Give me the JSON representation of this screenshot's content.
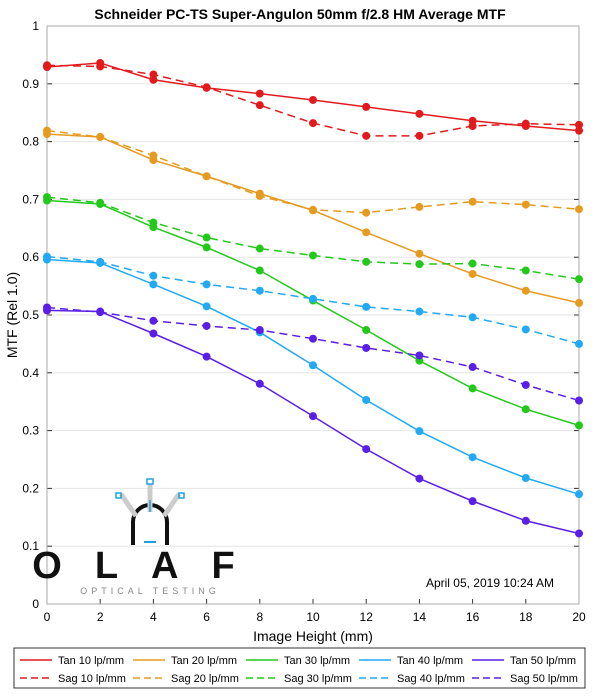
{
  "chart_data": {
    "type": "line",
    "title": "Schneider PC-TS Super-Angulon 50mm f/2.8 HM Average MTF",
    "xlabel": "Image Height (mm)",
    "ylabel": "MTF (Rel 1.0)",
    "xlim": [
      0,
      20
    ],
    "ylim": [
      0,
      1
    ],
    "xticks": [
      0,
      2,
      4,
      6,
      8,
      10,
      12,
      14,
      16,
      18,
      20
    ],
    "yticks": [
      0,
      0.1,
      0.2,
      0.3,
      0.4,
      0.5,
      0.6,
      0.7,
      0.8,
      0.9,
      1
    ],
    "ytick_labels": [
      "0",
      "0.1",
      "0.2",
      "0.3",
      "0.4",
      "0.5",
      "0.6",
      "0.7",
      "0.8",
      "0.9",
      "1"
    ],
    "grid": true,
    "legend_position": "bottom",
    "annotation": "April 05, 2019 10:24 AM",
    "x": [
      0,
      2,
      4,
      6,
      8,
      10,
      12,
      14,
      16,
      18,
      20
    ],
    "series": [
      {
        "name": "Tan 10 lp/mm",
        "color": "#e31a1c",
        "dash": false,
        "values": [
          0.929,
          0.936,
          0.907,
          0.893,
          0.883,
          0.872,
          0.86,
          0.848,
          0.836,
          0.827,
          0.819
        ]
      },
      {
        "name": "Tan 20 lp/mm",
        "color": "#e69b20",
        "dash": false,
        "values": [
          0.813,
          0.808,
          0.768,
          0.74,
          0.71,
          0.681,
          0.643,
          0.606,
          0.571,
          0.542,
          0.521
        ]
      },
      {
        "name": "Tan 30 lp/mm",
        "color": "#22c91a",
        "dash": false,
        "values": [
          0.698,
          0.692,
          0.652,
          0.617,
          0.577,
          0.525,
          0.474,
          0.421,
          0.373,
          0.337,
          0.309
        ]
      },
      {
        "name": "Tan 40 lp/mm",
        "color": "#21a9f5",
        "dash": false,
        "values": [
          0.596,
          0.59,
          0.553,
          0.515,
          0.47,
          0.413,
          0.353,
          0.299,
          0.254,
          0.218,
          0.19
        ]
      },
      {
        "name": "Tan 50 lp/mm",
        "color": "#5a1ee6",
        "dash": false,
        "values": [
          0.508,
          0.506,
          0.468,
          0.428,
          0.381,
          0.325,
          0.268,
          0.217,
          0.178,
          0.144,
          0.122
        ]
      },
      {
        "name": "Sag 10 lp/mm",
        "color": "#e31a1c",
        "dash": true,
        "values": [
          0.932,
          0.93,
          0.916,
          0.894,
          0.863,
          0.832,
          0.81,
          0.81,
          0.827,
          0.831,
          0.829
        ]
      },
      {
        "name": "Sag 20 lp/mm",
        "color": "#e69b20",
        "dash": true,
        "values": [
          0.819,
          0.808,
          0.776,
          0.74,
          0.706,
          0.682,
          0.677,
          0.687,
          0.696,
          0.691,
          0.683
        ]
      },
      {
        "name": "Sag 30 lp/mm",
        "color": "#22c91a",
        "dash": true,
        "values": [
          0.704,
          0.694,
          0.66,
          0.634,
          0.615,
          0.603,
          0.592,
          0.588,
          0.589,
          0.577,
          0.562
        ]
      },
      {
        "name": "Sag 40 lp/mm",
        "color": "#21a9f5",
        "dash": true,
        "values": [
          0.601,
          0.592,
          0.568,
          0.553,
          0.542,
          0.528,
          0.514,
          0.506,
          0.496,
          0.475,
          0.45
        ]
      },
      {
        "name": "Sag 50 lp/mm",
        "color": "#5a1ee6",
        "dash": true,
        "values": [
          0.513,
          0.505,
          0.49,
          0.481,
          0.474,
          0.459,
          0.443,
          0.43,
          0.41,
          0.379,
          0.352
        ]
      }
    ]
  },
  "logo": {
    "name": "OLAF",
    "tagline": "OPTICAL TESTING"
  }
}
